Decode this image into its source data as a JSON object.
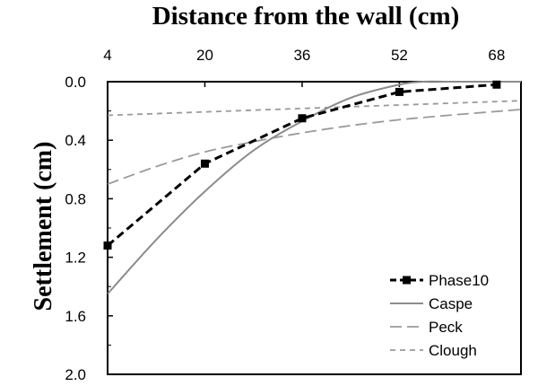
{
  "chart_data": {
    "type": "line",
    "title": "Distance from the wall (cm)",
    "xlabel": "Distance from the wall (cm)",
    "ylabel": "Settlement (cm)",
    "x_axis_position": "top",
    "y_axis_inverted": true,
    "xlim": [
      4,
      72
    ],
    "ylim": [
      0.0,
      2.0
    ],
    "xticks": [
      "4",
      "20",
      "36",
      "52",
      "68"
    ],
    "yticks": [
      "0.0",
      "0.4",
      "0.8",
      "1.2",
      "1.6",
      "2.0"
    ],
    "legend_position": "bottom-right",
    "series": [
      {
        "name": "Phase10",
        "style": "dashed-markers",
        "color": "#000000",
        "x": [
          4,
          20,
          36,
          52,
          68
        ],
        "y": [
          1.12,
          0.56,
          0.25,
          0.07,
          0.02
        ]
      },
      {
        "name": "Caspe",
        "style": "solid",
        "color": "#8c8c8c",
        "x": [
          4,
          12,
          20,
          28,
          36,
          44,
          52,
          56,
          60,
          64,
          72
        ],
        "y": [
          1.45,
          1.08,
          0.75,
          0.47,
          0.27,
          0.11,
          0.02,
          0.0,
          0.0,
          0.0,
          0.0
        ]
      },
      {
        "name": "Peck",
        "style": "long-dash",
        "color": "#9a9a9a",
        "x": [
          4,
          12,
          20,
          28,
          36,
          44,
          52,
          60,
          72
        ],
        "y": [
          0.7,
          0.58,
          0.48,
          0.41,
          0.35,
          0.3,
          0.26,
          0.23,
          0.19
        ]
      },
      {
        "name": "Clough",
        "style": "short-dash",
        "color": "#9a9a9a",
        "x": [
          4,
          72
        ],
        "y": [
          0.23,
          0.13
        ]
      }
    ]
  }
}
